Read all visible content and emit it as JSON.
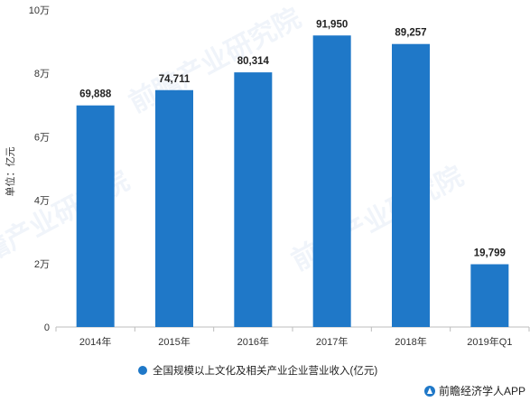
{
  "chart_data": {
    "type": "bar",
    "categories": [
      "2014年",
      "2015年",
      "2016年",
      "2017年",
      "2018年",
      "2019年Q1"
    ],
    "series": [
      {
        "name": "全国规模以上文化及相关产业企业营业收入(亿元)",
        "values": [
          69888,
          74711,
          80314,
          91950,
          89257,
          19799
        ],
        "data_labels": [
          "69,888",
          "74,711",
          "80,314",
          "91,950",
          "89,257",
          "19,799"
        ]
      }
    ],
    "ylabel": "单位：亿元",
    "ylim": [
      0,
      100000
    ],
    "yticks": [
      0,
      20000,
      40000,
      60000,
      80000,
      100000
    ],
    "ytick_labels": [
      "0",
      "2万",
      "4万",
      "6万",
      "8万",
      "10万"
    ],
    "grid": false,
    "legend_position": "bottom",
    "bar_color": "#1f78c8"
  },
  "watermark": {
    "text": "前瞻产业研究院",
    "color": "#4a84c4"
  },
  "brand": {
    "text": "前瞻经济学人APP",
    "icon": "qianzhan-logo-icon"
  }
}
